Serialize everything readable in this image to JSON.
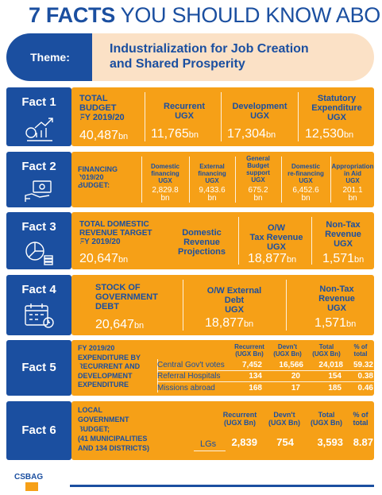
{
  "header": {
    "bold": "7 FACTS",
    "rest": " YOU SHOULD KNOW ABO"
  },
  "theme": {
    "label": "Theme:",
    "line1": "Industrialization for Job Creation",
    "line2": "and Shared Prosperity"
  },
  "facts": [
    {
      "label": "Fact 1"
    },
    {
      "label": "Fact 2"
    },
    {
      "label": "Fact 3"
    },
    {
      "label": "Fact 4"
    },
    {
      "label": "Fact 5"
    },
    {
      "label": "Fact 6"
    }
  ],
  "fact1": {
    "title1": "TOTAL",
    "title2": "BUDGET",
    "title3": "FY 2019/20",
    "total_num": "40,487",
    "total_unit": "bn",
    "recurrent_h1": "Recurrent",
    "recurrent_h2": "UGX",
    "recurrent_num": "11,765",
    "recurrent_unit": "bn",
    "dev_h1": "Development",
    "dev_h2": "UGX",
    "dev_num": "17,304",
    "dev_unit": "bn",
    "stat_h1": "Statutory",
    "stat_h2": "Expenditure",
    "stat_h3": "UGX",
    "stat_num": "12,530",
    "stat_unit": "bn"
  },
  "fact2": {
    "title1": "FINANCING",
    "title2": "2019/20",
    "title3": "BUDGET:",
    "cols": [
      {
        "h1": "Domestic",
        "h2": "financing",
        "h3": "UGX",
        "v1": "2,829.8",
        "v2": "bn"
      },
      {
        "h1": "External",
        "h2": "financing",
        "h3": "UGX",
        "v1": "9,433.6",
        "v2": "bn"
      },
      {
        "h0": "General",
        "h1": "Budget",
        "h2": "support",
        "h3": "UGX",
        "v1": "675.2",
        "v2": "bn"
      },
      {
        "h1": "Domestic",
        "h2": "re-financing",
        "h3": "UGX",
        "v1": "6,452.6",
        "v2": "bn"
      },
      {
        "h1": "Appropriation",
        "h2": "in Aid",
        "h3": "UGX",
        "v1": "201.1",
        "v2": "bn"
      }
    ]
  },
  "fact3": {
    "title1": "TOTAL DOMESTIC",
    "title2": "REVENUE TARGET",
    "title3": "FY 2019/20",
    "num": "20,647",
    "unit": "bn",
    "c1a": "Domestic",
    "c1b": "Revenue",
    "c1c": "Projections",
    "c2a": "O/W",
    "c2b": "Tax Revenue",
    "c2c": "UGX",
    "c2num": "18,877",
    "c2unit": "bn",
    "c3a": "Non-Tax",
    "c3b": "Revenue",
    "c3c": "UGX",
    "c3num": "1,571",
    "c3unit": "bn"
  },
  "fact4": {
    "title1": "STOCK OF",
    "title2": "GOVERNMENT",
    "title3": "DEBT",
    "num": "20,647",
    "unit": "bn",
    "c2a": "O/W External",
    "c2b": "Debt",
    "c2c": "UGX",
    "c2num": "18,877",
    "c2unit": "bn",
    "c3a": "Non-Tax",
    "c3b": "Revenue",
    "c3c": "UGX",
    "c3num": "1,571",
    "c3unit": "bn"
  },
  "fact5": {
    "title": [
      "FY 2019/20",
      "EXPENDITURE BY",
      "RECURRENT AND",
      "DEVELOPMENT",
      "EXPENDITURE"
    ],
    "headers": [
      [
        "Recurrent",
        "(UGX Bn)"
      ],
      [
        "Devn't",
        "(UGX Bn)"
      ],
      [
        "Total",
        "(UGX Bn)"
      ],
      [
        "% of",
        "total"
      ]
    ],
    "rows": [
      {
        "label": "Central Gov't votes",
        "rec": "7,452",
        "dev": "16,566",
        "tot": "24,018",
        "pct": "59.32"
      },
      {
        "label": "Referral Hospitals",
        "rec": "134",
        "dev": "20",
        "tot": "154",
        "pct": "0.38"
      },
      {
        "label": "Missions abroad",
        "rec": "168",
        "dev": "17",
        "tot": "185",
        "pct": "0.46"
      }
    ]
  },
  "fact6": {
    "title": [
      "LOCAL",
      "GOVERNMENT",
      "BUDGET;",
      "(41 MUNICIPALITIES",
      "AND 134 DISTRICTS)"
    ],
    "headers": [
      [
        "Recurrent",
        "(UGX Bn)"
      ],
      [
        "Devn't",
        "(UGX Bn)"
      ],
      [
        "Total",
        "(UGX Bn)"
      ],
      [
        "% of",
        "total"
      ]
    ],
    "row": {
      "label": "LGs",
      "rec": "2,839",
      "dev": "754",
      "tot": "3,593",
      "pct": "8.87"
    }
  },
  "logo": {
    "text": "CSBAG"
  },
  "colors": {
    "blue": "#1b4fa0",
    "orange": "#f6a017",
    "cream": "#fbe1c6"
  }
}
